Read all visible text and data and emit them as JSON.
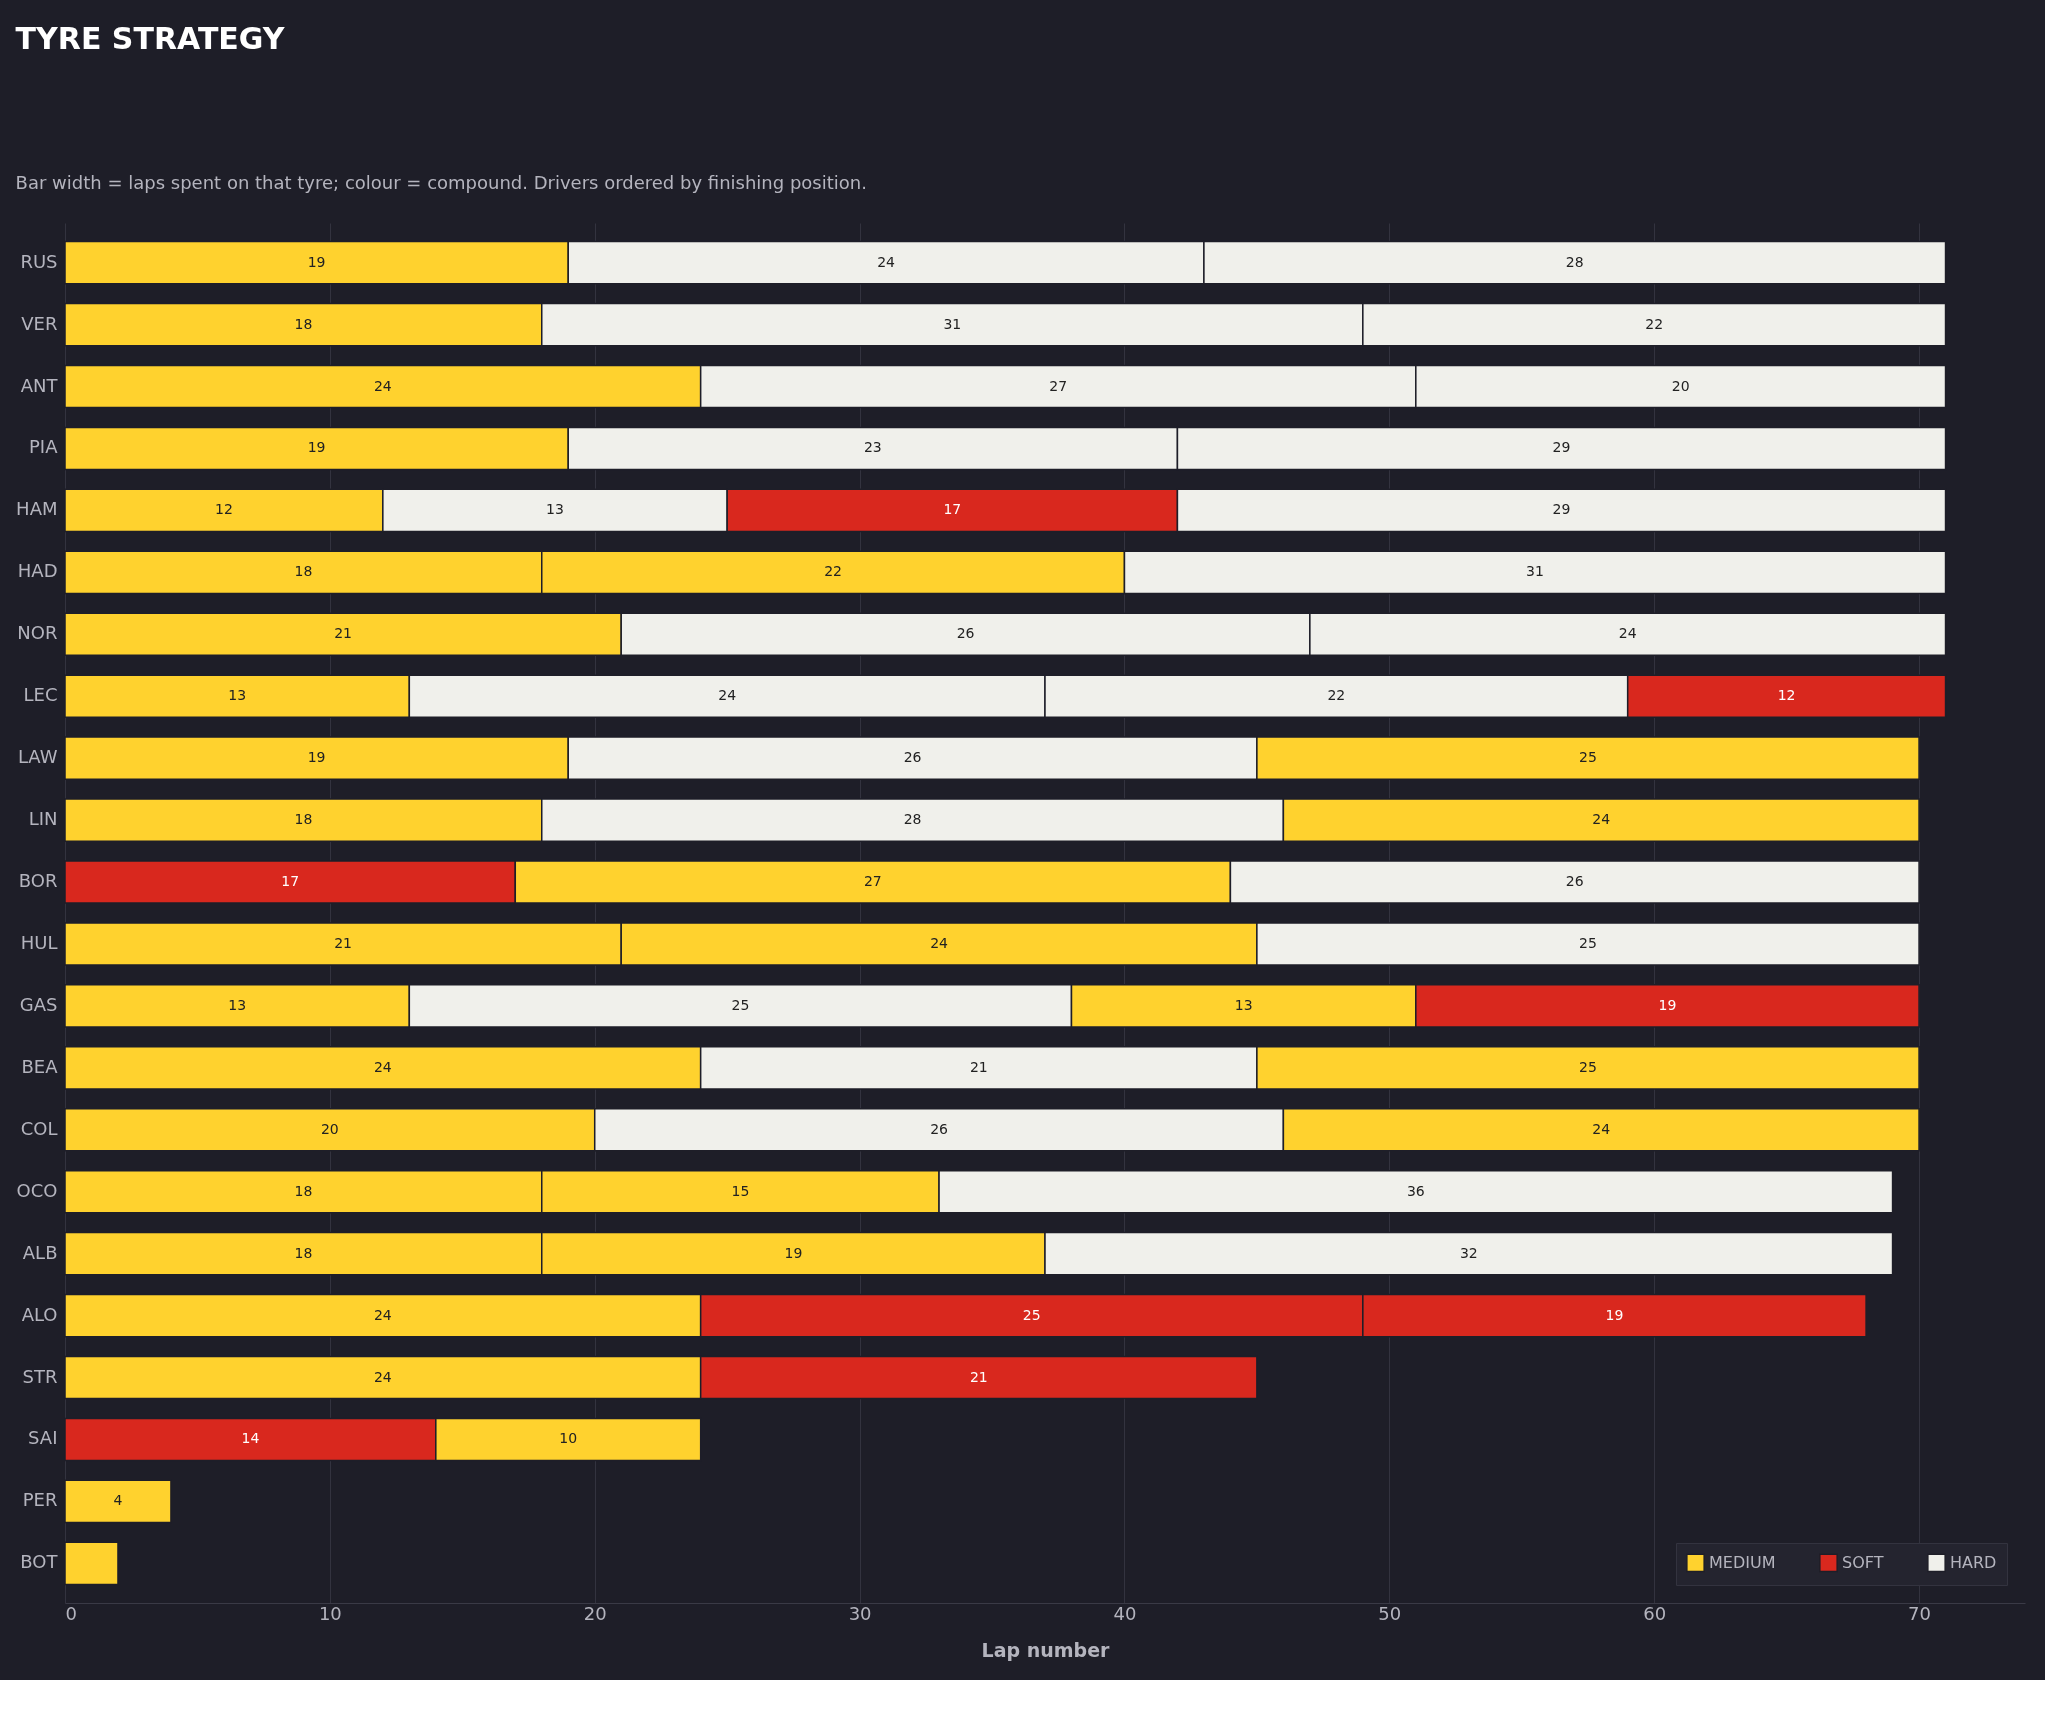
{
  "chart_data": {
    "type": "bar",
    "orientation": "horizontal",
    "stacked": true,
    "title": "TYRE STRATEGY",
    "subtitle": "Bar width = laps spent on that tyre; colour = compound. Drivers ordered by finishing position.",
    "xlabel": "Lap number",
    "categories": [
      "RUS",
      "VER",
      "ANT",
      "PIA",
      "HAM",
      "HAD",
      "NOR",
      "LEC",
      "LAW",
      "LIN",
      "BOR",
      "HUL",
      "GAS",
      "BEA",
      "COL",
      "OCO",
      "ALB",
      "ALO",
      "STR",
      "SAI",
      "PER",
      "BOT"
    ],
    "series": [
      {
        "name": "MEDIUM",
        "color": "#ffd22e",
        "values": [
          19,
          18,
          24,
          19,
          12,
          18,
          21,
          13,
          19,
          18,
          null,
          21,
          13,
          24,
          20,
          18,
          18,
          24,
          24,
          null,
          4,
          2
        ],
        "value_labels": [
          "19",
          "18",
          "24",
          "19",
          "12",
          "18",
          "21",
          "13",
          "19",
          "18",
          null,
          "21",
          "13",
          "24",
          "20",
          "18",
          "18",
          "24",
          "24",
          null,
          "4",
          null
        ]
      },
      {
        "name": "SOFT",
        "color": "#d9281e",
        "values": [
          null,
          null,
          null,
          null,
          null,
          null,
          null,
          null,
          null,
          null,
          17,
          null,
          null,
          null,
          null,
          null,
          null,
          null,
          null,
          14,
          null,
          null
        ],
        "value_labels": [
          null,
          null,
          null,
          null,
          null,
          null,
          null,
          null,
          null,
          null,
          "17",
          null,
          null,
          null,
          null,
          null,
          null,
          null,
          null,
          "14",
          null,
          null
        ]
      },
      {
        "color": "#ffd22e",
        "values": [
          null,
          null,
          null,
          null,
          null,
          22,
          null,
          null,
          null,
          null,
          27,
          24,
          null,
          null,
          null,
          15,
          19,
          null,
          null,
          10,
          null,
          null
        ],
        "value_labels": [
          null,
          null,
          null,
          null,
          null,
          "22",
          null,
          null,
          null,
          null,
          "27",
          "24",
          null,
          null,
          null,
          "15",
          "19",
          null,
          null,
          "10",
          null,
          null
        ]
      },
      {
        "name": "HARD",
        "color": "#f0f0eb",
        "values": [
          24,
          31,
          27,
          23,
          13,
          null,
          26,
          24,
          26,
          28,
          null,
          null,
          25,
          21,
          26,
          null,
          null,
          null,
          null,
          null,
          null,
          null
        ],
        "value_labels": [
          "24",
          "31",
          "27",
          "23",
          "13",
          null,
          "26",
          "24",
          "26",
          "28",
          null,
          null,
          "25",
          "21",
          "26",
          null,
          null,
          null,
          null,
          null,
          null,
          null
        ]
      },
      {
        "color": "#d9281e",
        "values": [
          null,
          null,
          null,
          null,
          null,
          null,
          null,
          null,
          null,
          null,
          null,
          null,
          null,
          null,
          null,
          null,
          null,
          25,
          21,
          null,
          null,
          null
        ],
        "value_labels": [
          null,
          null,
          null,
          null,
          null,
          null,
          null,
          null,
          null,
          null,
          null,
          null,
          null,
          null,
          null,
          null,
          null,
          "25",
          "21",
          null,
          null,
          null
        ]
      },
      {
        "color": "#ffd22e",
        "values": [
          null,
          null,
          null,
          null,
          null,
          null,
          null,
          null,
          25,
          24,
          null,
          null,
          13,
          25,
          24,
          null,
          null,
          null,
          null,
          null,
          null,
          null
        ],
        "value_labels": [
          null,
          null,
          null,
          null,
          null,
          null,
          null,
          null,
          "25",
          "24",
          null,
          null,
          "13",
          "25",
          "24",
          null,
          null,
          null,
          null,
          null,
          null,
          null
        ]
      },
      {
        "color": "#f0f0eb",
        "values": [
          28,
          22,
          20,
          29,
          null,
          31,
          24,
          22,
          null,
          null,
          26,
          25,
          null,
          null,
          null,
          36,
          32,
          null,
          null,
          null,
          null,
          null
        ],
        "value_labels": [
          "28",
          "22",
          "20",
          "29",
          null,
          "31",
          "24",
          "22",
          null,
          null,
          "26",
          "25",
          null,
          null,
          null,
          "36",
          "32",
          null,
          null,
          null,
          null,
          null
        ]
      },
      {
        "color": "#d9281e",
        "values": [
          null,
          null,
          null,
          null,
          17,
          null,
          null,
          null,
          null,
          null,
          null,
          null,
          null,
          null,
          null,
          null,
          null,
          19,
          null,
          null,
          null,
          null
        ],
        "value_labels": [
          null,
          null,
          null,
          null,
          "17",
          null,
          null,
          null,
          null,
          null,
          null,
          null,
          null,
          null,
          null,
          null,
          null,
          "19",
          null,
          null,
          null,
          null
        ]
      },
      {
        "color": "#f0f0eb",
        "values": [
          null,
          null,
          null,
          null,
          29,
          null,
          null,
          null,
          null,
          null,
          null,
          null,
          null,
          null,
          null,
          null,
          null,
          null,
          null,
          null,
          null,
          null
        ],
        "value_labels": [
          null,
          null,
          null,
          null,
          "29",
          null,
          null,
          null,
          null,
          null,
          null,
          null,
          null,
          null,
          null,
          null,
          null,
          null,
          null,
          null,
          null,
          null
        ]
      },
      {
        "color": "#d9281e",
        "values": [
          null,
          null,
          null,
          null,
          null,
          null,
          null,
          12,
          null,
          null,
          null,
          null,
          19,
          null,
          null,
          null,
          null,
          null,
          null,
          null,
          null,
          null
        ],
        "value_labels": [
          null,
          null,
          null,
          null,
          null,
          null,
          null,
          "12",
          null,
          null,
          null,
          null,
          "19",
          null,
          null,
          null,
          null,
          null,
          null,
          null,
          null,
          null
        ]
      }
    ],
    "xlim": [
      0,
      74
    ],
    "xticks": [
      0,
      10,
      20,
      30,
      40,
      50,
      60,
      70
    ],
    "grid": "x",
    "legend": "bottom right"
  }
}
